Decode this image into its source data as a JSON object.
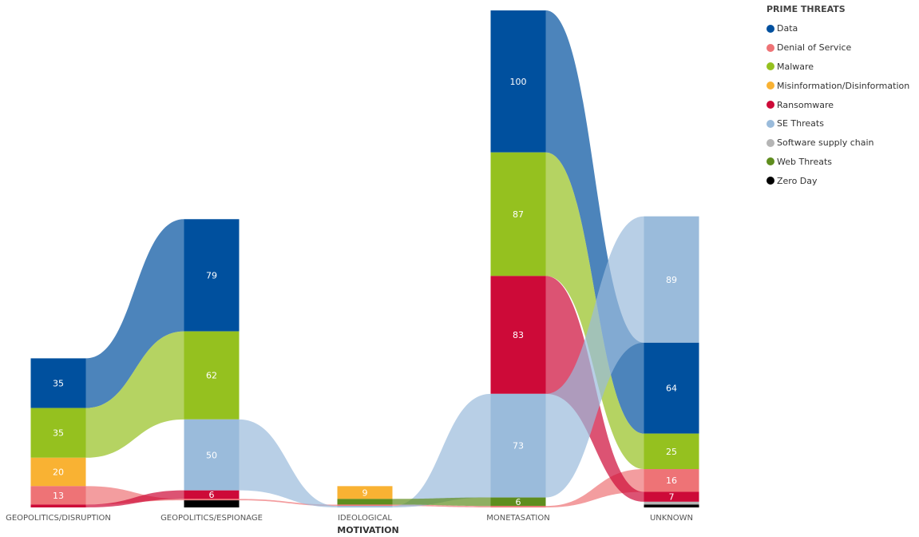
{
  "legend": {
    "title": "PRIME THREATS",
    "items": [
      {
        "label": "Data",
        "color": "#00509E"
      },
      {
        "label": "Denial of Service",
        "color": "#EE7376"
      },
      {
        "label": "Malware",
        "color": "#95C11F"
      },
      {
        "label": "Misinformation/Disinformation",
        "color": "#F9B233"
      },
      {
        "label": "Ransomware",
        "color": "#CD0A38"
      },
      {
        "label": "SE Threats",
        "color": "#9ABBDB"
      },
      {
        "label": "Software supply chain",
        "color": "#B5B5B5"
      },
      {
        "label": "Web Threats",
        "color": "#5F8D1E"
      },
      {
        "label": "Zero Day",
        "color": "#000000"
      }
    ]
  },
  "chart_data": {
    "type": "stacked-bar-ribbon",
    "xlabel": "MOTIVATION",
    "categories": [
      "GEOPOLITICS/DISRUPTION",
      "GEOPOLITICS/ESPIONAGE",
      "IDEOLOGICAL",
      "MONETASATION",
      "UNKNOWN"
    ],
    "series": [
      {
        "name": "Data",
        "values": [
          35,
          79,
          0,
          100,
          64
        ]
      },
      {
        "name": "Denial of Service",
        "values": [
          13,
          1,
          1,
          1,
          16
        ]
      },
      {
        "name": "Malware",
        "values": [
          35,
          62,
          0,
          87,
          25
        ]
      },
      {
        "name": "Misinformation/Disinformation",
        "values": [
          20,
          0,
          9,
          0,
          0
        ]
      },
      {
        "name": "Ransomware",
        "values": [
          2,
          6,
          0,
          83,
          7
        ]
      },
      {
        "name": "SE Threats",
        "values": [
          0,
          50,
          1,
          73,
          89
        ]
      },
      {
        "name": "Software supply chain",
        "values": [
          0,
          0,
          0,
          0,
          2
        ]
      },
      {
        "name": "Web Threats",
        "values": [
          0,
          0,
          4,
          6,
          0
        ]
      },
      {
        "name": "Zero Day",
        "values": [
          0,
          5,
          0,
          0,
          2
        ]
      }
    ],
    "stack_order": [
      [
        "Data",
        "Malware",
        "Misinformation/Disinformation",
        "Denial of Service",
        "Ransomware"
      ],
      [
        "Data",
        "Malware",
        "SE Threats",
        "Ransomware",
        "Denial of Service",
        "Zero Day"
      ],
      [
        "Misinformation/Disinformation",
        "Web Threats",
        "Denial of Service",
        "SE Threats"
      ],
      [
        "Data",
        "Malware",
        "Ransomware",
        "SE Threats",
        "Web Threats",
        "Denial of Service"
      ],
      [
        "SE Threats",
        "Data",
        "Malware",
        "Denial of Service",
        "Ransomware",
        "Software supply chain",
        "Zero Day"
      ]
    ],
    "grid": false,
    "legend_position": "top-right"
  }
}
